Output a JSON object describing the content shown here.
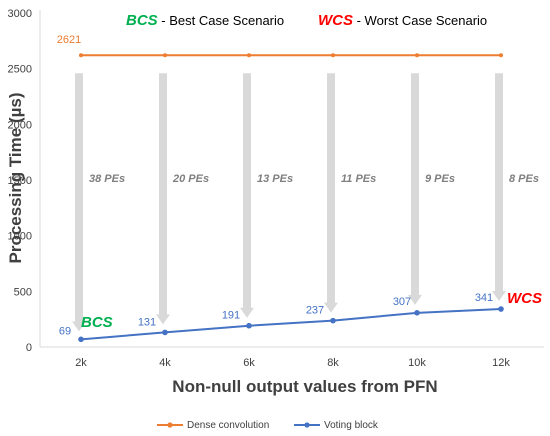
{
  "colors": {
    "dense": "#ED7D31",
    "voting": "#4472C4",
    "bcs": "#00B050",
    "wcs": "#FF0000",
    "arrow": "#d9d9d9",
    "text": "#404040",
    "pe_label": "#7f7f7f"
  },
  "chart_data": {
    "type": "line",
    "categories": [
      "2k",
      "4k",
      "6k",
      "8k",
      "10k",
      "12k"
    ],
    "series": [
      {
        "name": "Dense convolution",
        "values": [
          2621,
          2621,
          2621,
          2621,
          2621,
          2621
        ],
        "data_labels": [
          "2621",
          "",
          "",
          "",
          "",
          ""
        ]
      },
      {
        "name": "Voting block",
        "values": [
          69,
          131,
          191,
          237,
          307,
          341
        ],
        "data_labels": [
          "69",
          "131",
          "191",
          "237",
          "307",
          "341"
        ]
      }
    ],
    "yticks": [
      "0",
      "500",
      "1000",
      "1500",
      "2000",
      "2500",
      "3000"
    ],
    "ylim": [
      0,
      3000
    ],
    "xlabel": "Non-null output values from PFN",
    "ylabel": "Processing Time (µs)",
    "pe_annotations": [
      "38 PEs",
      "20 PEs",
      "13 PEs",
      "11 PEs",
      "9 PEs",
      "8 PEs"
    ],
    "scenarios": {
      "bcs_abbr": "BCS",
      "bcs_text": " - Best Case Scenario",
      "wcs_abbr": "WCS",
      "wcs_text": " - Worst Case Scenario"
    },
    "point_markers": {
      "bcs": "BCS",
      "wcs": "WCS"
    },
    "grid": false,
    "legend_position": "bottom"
  }
}
